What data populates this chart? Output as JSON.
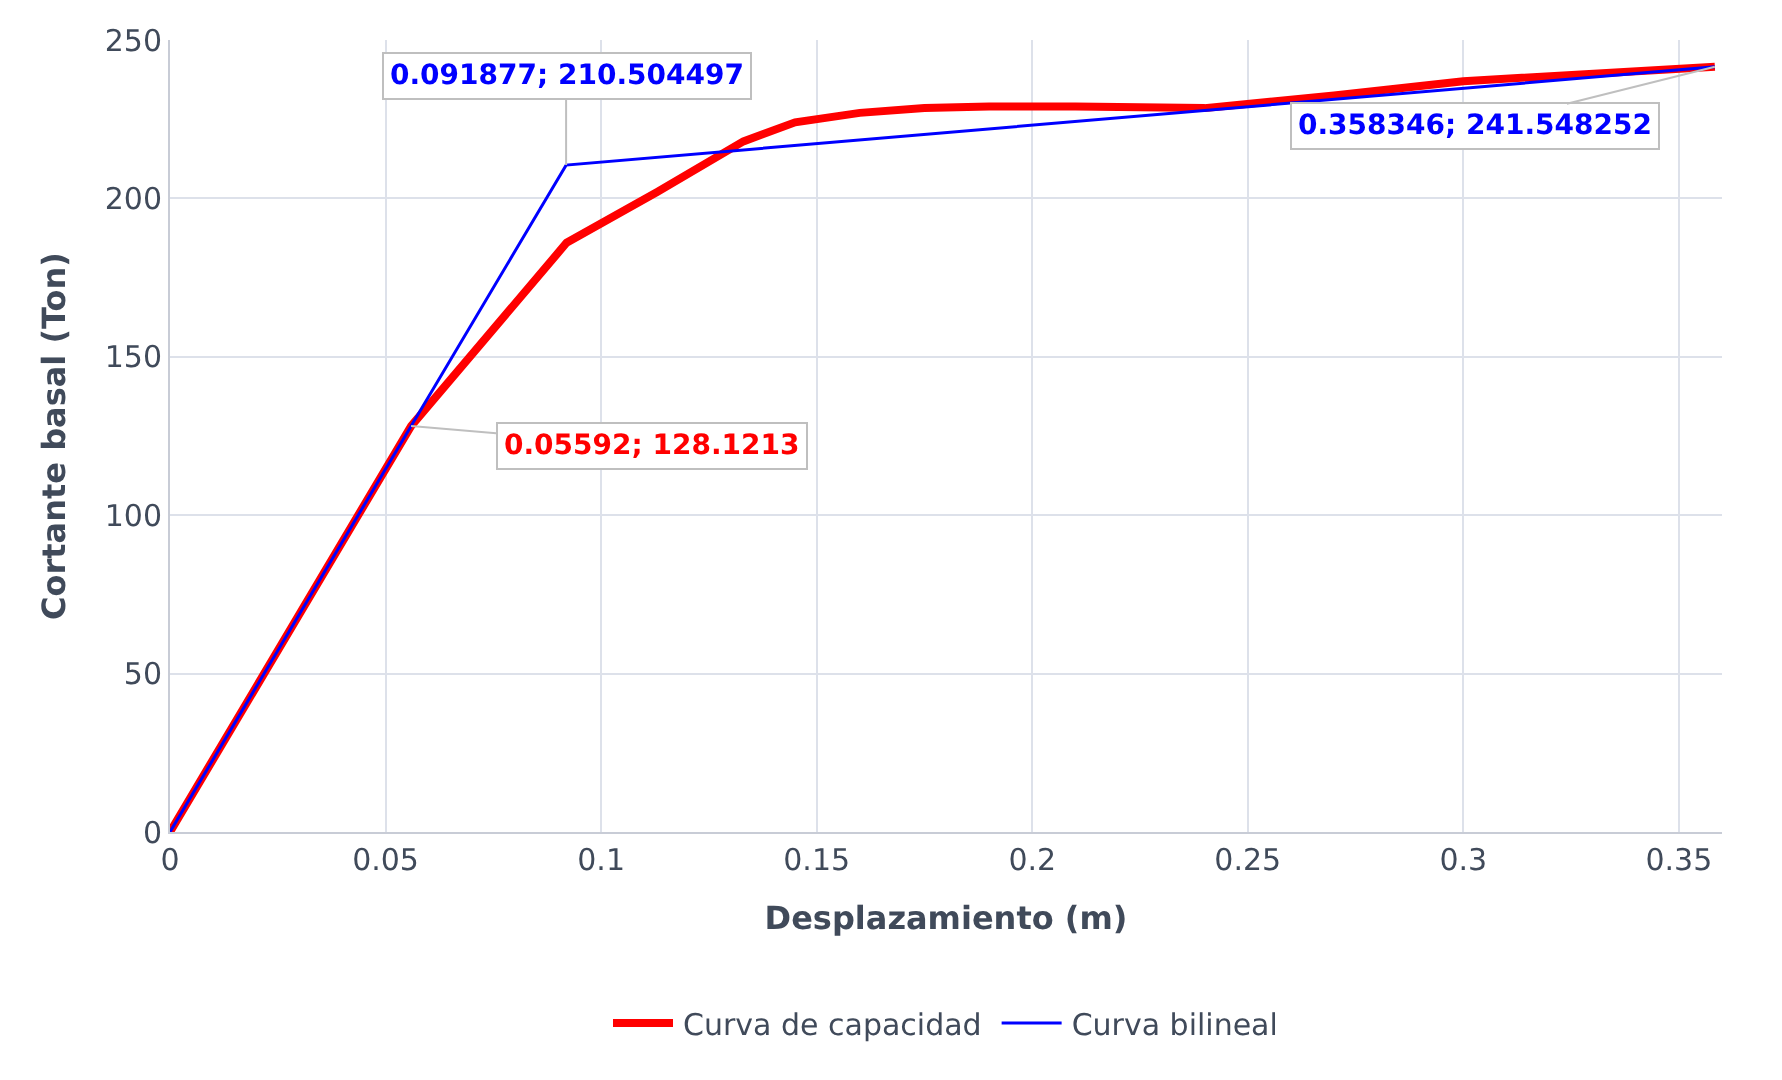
{
  "chart_data": {
    "type": "line",
    "xlabel": "Desplazamiento (m)",
    "ylabel": "Cortante basal (Ton)",
    "xlim": [
      0,
      0.36
    ],
    "xticks": [
      0,
      0.05,
      0.1,
      0.15,
      0.2,
      0.25,
      0.3,
      0.35
    ],
    "ylim": [
      0,
      250
    ],
    "yticks": [
      0,
      50,
      100,
      150,
      200,
      250
    ],
    "grid": true,
    "legend": "bottom",
    "marker": "none",
    "line_style": "solid",
    "series": [
      {
        "name": "Curva de capacidad",
        "color": "#ff0000",
        "x": [
          0,
          0.05592,
          0.092,
          0.113,
          0.133,
          0.145,
          0.16,
          0.175,
          0.19,
          0.21,
          0.24,
          0.27,
          0.3,
          0.358346
        ],
        "values": [
          0,
          128.1213,
          186,
          202,
          218,
          224,
          227,
          228.5,
          229,
          229,
          228.5,
          232.5,
          237,
          241.548252
        ]
      },
      {
        "name": "Curva bilineal",
        "color": "#0000ff",
        "x": [
          0,
          0.091877,
          0.358346
        ],
        "values": [
          0,
          210.504497,
          241.548252
        ]
      }
    ],
    "annotations": [
      {
        "text": "0.091877; 210.504497",
        "x": 0.091877,
        "y": 210.504497
      },
      {
        "text": "0.358346; 241.548252",
        "x": 0.358346,
        "y": 241.548252
      },
      {
        "text": "0.05592; 128.1213",
        "x": 0.05592,
        "y": 128.1213
      }
    ]
  }
}
